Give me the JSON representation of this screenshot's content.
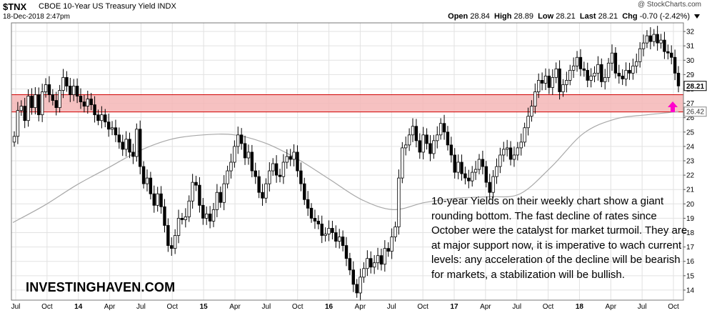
{
  "header": {
    "symbol": "$TNX",
    "description": "CBOE 10-Year US Treasury Yield INDX",
    "date": "18-Dec-2018 2:47pm",
    "brand": "@ StockCharts.com",
    "open_label": "Open",
    "open": "28.84",
    "high_label": "High",
    "high": "28.89",
    "low_label": "Low",
    "low": "28.21",
    "last_label": "Last",
    "last": "28.21",
    "chg_label": "Chg",
    "chg": "-0.70 (-2.42%)"
  },
  "annotation": "10-year Yields on their weekly chart show a giant rounding bottom. The fast decline of rates since October were the catalyst for market turmoil. They are at major support now, it is imperative to wach current levels: any acceleration of the decline will be bearish for markets, a stabilization will be bullish.",
  "watermark": "INVESTINGHAVEN.COM",
  "colors": {
    "candles": "#000000",
    "moving_average": "#a8a8a8",
    "support_band_fill": "#f4b6b6",
    "support_band_border": "#d00000",
    "arrow": "#ff00cc",
    "grid": "#e2e2e2"
  },
  "chart_data": {
    "type": "candlestick",
    "title": "CBOE 10-Year US Treasury Yield INDX",
    "x_tick_labels": [
      "Jul",
      "Oct",
      "14",
      "Apr",
      "Jul",
      "Oct",
      "15",
      "Apr",
      "Jul",
      "Oct",
      "16",
      "Apr",
      "Jul",
      "Oct",
      "17",
      "Apr",
      "Jul",
      "Oct",
      "18",
      "Apr",
      "Jul",
      "Oct"
    ],
    "y_tick_labels": [
      "14",
      "15",
      "16",
      "17",
      "18",
      "19",
      "20",
      "21",
      "22",
      "23",
      "24",
      "25",
      "26",
      "27",
      "28",
      "29",
      "30",
      "31",
      "32"
    ],
    "ylim": [
      13.3,
      32.6
    ],
    "last_price_label": "28.21",
    "moving_average_label": "26.42",
    "support_zone": [
      26.4,
      27.6
    ],
    "series": [
      {
        "values": [
          24.7,
          26.5,
          26.8,
          25.8,
          27.5,
          26.7,
          27.6,
          26.2,
          27.8,
          28.3,
          27.6,
          27.2,
          26.7,
          27.9,
          28.8,
          28.2,
          27.6,
          28.2,
          27.5,
          27.1,
          26.8,
          27.3,
          26.9,
          26.2,
          25.8,
          26.2,
          25.7,
          25.2,
          25.3,
          24.8,
          24.3,
          23.8,
          24.5,
          23.6,
          23.3,
          25.2,
          22.6,
          21.4,
          21.8,
          20.7,
          19.9,
          20.7,
          19.8,
          18.5,
          17.1,
          16.9,
          17.8,
          19.0,
          18.9,
          19.1,
          20.2,
          21.5,
          21.3,
          19.9,
          19.0,
          19.3,
          18.8,
          19.6,
          20.8,
          20.1,
          21.4,
          22.3,
          22.9,
          24.0,
          24.8,
          24.2,
          23.2,
          23.6,
          22.3,
          21.9,
          20.8,
          20.4,
          21.4,
          22.3,
          22.8,
          22.0,
          21.9,
          22.9,
          23.3,
          23.1,
          23.6,
          22.3,
          21.4,
          20.3,
          19.7,
          19.0,
          18.8,
          18.6,
          17.8,
          17.9,
          18.3,
          18.0,
          17.4,
          17.7,
          17.1,
          16.2,
          15.4,
          14.4,
          13.8,
          14.9,
          15.5,
          16.2,
          15.6,
          15.9,
          16.4,
          15.8,
          16.9,
          16.7,
          17.7,
          18.4,
          21.8,
          23.9,
          24.1,
          24.8,
          25.4,
          24.4,
          23.6,
          24.8,
          24.2,
          23.5,
          24.4,
          24.8,
          25.6,
          25.0,
          24.1,
          23.4,
          22.2,
          22.9,
          22.1,
          21.8,
          21.6,
          22.2,
          22.4,
          23.1,
          22.6,
          21.5,
          20.8,
          21.9,
          22.6,
          23.4,
          23.8,
          23.9,
          23.1,
          23.4,
          23.9,
          24.3,
          25.3,
          26.1,
          26.8,
          27.8,
          28.6,
          28.4,
          28.9,
          28.1,
          28.8,
          29.4,
          27.8,
          28.3,
          28.6,
          29.3,
          29.6,
          30.2,
          29.4,
          29.3,
          28.6,
          28.9,
          29.1,
          29.7,
          28.5,
          28.8,
          29.8,
          30.5,
          29.1,
          28.9,
          28.7,
          29.3,
          29.1,
          29.6,
          29.9,
          30.8,
          31.2,
          31.7,
          31.3,
          31.8,
          31.2,
          31.4,
          30.6,
          30.5,
          30.2,
          29.1,
          28.21
        ]
      },
      {
        "name": "26.42",
        "values": [
          18.7,
          19.9,
          21.3,
          22.5,
          23.7,
          24.5,
          24.8,
          24.8,
          24.2,
          23.1,
          21.7,
          20.3,
          19.6,
          20.1,
          20.4,
          20.5,
          20.7,
          22.6,
          24.9,
          25.9,
          26.2,
          26.42
        ]
      }
    ]
  }
}
